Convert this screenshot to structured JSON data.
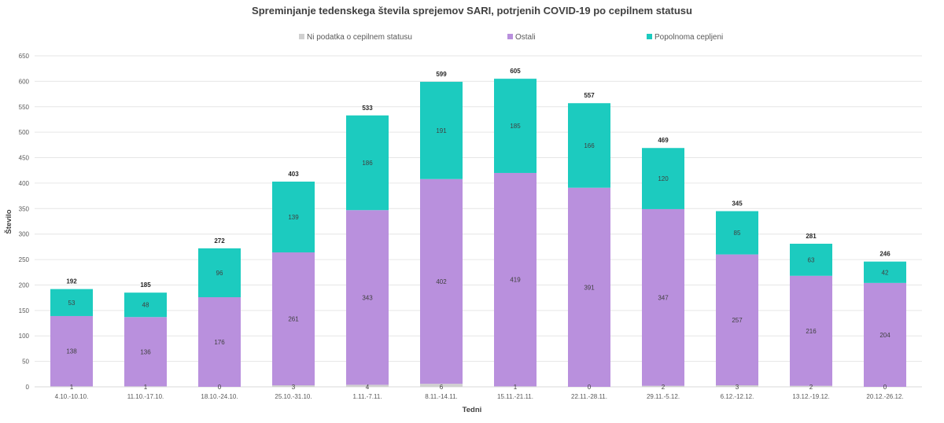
{
  "chart_data": {
    "type": "bar",
    "stacked": true,
    "title": "Spreminjanje tedenskega števila sprejemov SARI, potrjenih COVID-19 po cepilnem statusu",
    "xlabel": "Tedni",
    "ylabel": "Število",
    "ylim": [
      0,
      650
    ],
    "yticks": [
      0,
      50,
      100,
      150,
      200,
      250,
      300,
      350,
      400,
      450,
      500,
      550,
      600,
      650
    ],
    "grid": true,
    "legend_position": "top",
    "categories": [
      "4.10.-10.10.",
      "11.10.-17.10.",
      "18.10.-24.10.",
      "25.10.-31.10.",
      "1.11.-7.11.",
      "8.11.-14.11.",
      "15.11.-21.11.",
      "22.11.-28.11.",
      "29.11.-5.12.",
      "6.12.-12.12.",
      "13.12.-19.12.",
      "20.12.-26.12."
    ],
    "series": [
      {
        "name": "Ni podatka o cepilnem statusu",
        "color": "#d0d0d0",
        "values": [
          1,
          1,
          0,
          3,
          4,
          6,
          1,
          0,
          2,
          3,
          2,
          0
        ]
      },
      {
        "name": "Ostali",
        "color": "#b990dd",
        "values": [
          138,
          136,
          176,
          261,
          343,
          402,
          419,
          391,
          347,
          257,
          216,
          204
        ]
      },
      {
        "name": "Popolnoma cepljeni",
        "color": "#1ccbbf",
        "values": [
          53,
          48,
          96,
          139,
          186,
          191,
          185,
          166,
          120,
          85,
          63,
          42
        ]
      }
    ],
    "totals": [
      192,
      185,
      272,
      403,
      533,
      599,
      605,
      557,
      469,
      345,
      281,
      246
    ]
  }
}
